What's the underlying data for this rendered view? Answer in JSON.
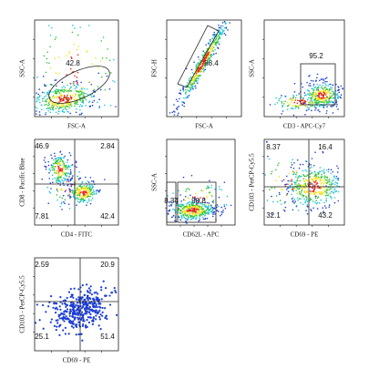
{
  "panels": [
    {
      "y_label": "SSC-A",
      "x_label": "FSC-A",
      "gates": [
        42.8
      ]
    },
    {
      "y_label": "FSC-H",
      "x_label": "FSC-A",
      "gates": [
        88.4
      ]
    },
    {
      "y_label": "SSC-A",
      "x_label": "CD3 - APC-Cy7",
      "gates": [
        95.2
      ]
    },
    {
      "y_label": "CD8 - Pacific Blue",
      "x_label": "CD4 - FITC",
      "gates": [
        46.9,
        2.84,
        7.81,
        42.4
      ]
    },
    {
      "y_label": "SSC-A",
      "x_label": "CD62L - APC",
      "gates": [
        8.34,
        90.8
      ]
    },
    {
      "y_label": "CD103 - PerCP-Cy5.5",
      "x_label": "CD69 - PE",
      "gates": [
        8.37,
        16.4,
        32.1,
        43.2
      ]
    },
    {
      "y_label": "CD103 - PerCP-Cy5.5",
      "x_label": "CD69 - PE",
      "gates": [
        2.59,
        20.9,
        25.1,
        51.4
      ]
    }
  ]
}
